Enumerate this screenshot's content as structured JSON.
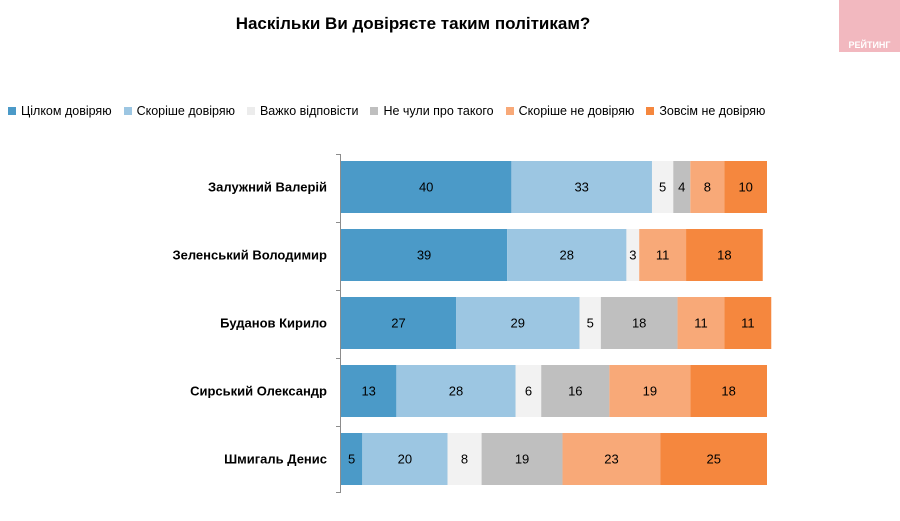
{
  "title": "Наскільки Ви довіряєте таким політикам?",
  "logo_text": "РЕЙТИНГ",
  "chart_data": {
    "type": "bar",
    "orientation": "horizontal",
    "stacked": true,
    "title": "Наскільки Ви довіряєте таким політикам?",
    "legend_position": "top",
    "categories": [
      "Залужний Валерій",
      "Зеленський Володимир",
      "Буданов Кирило",
      "Сирський Олександр",
      "Шмигаль Денис"
    ],
    "series": [
      {
        "name": "Цілком довіряю",
        "color": "#4b9ac8",
        "values": [
          40,
          39,
          27,
          13,
          5
        ]
      },
      {
        "name": "Скоріше довіряю",
        "color": "#9cc6e2",
        "values": [
          33,
          28,
          29,
          28,
          20
        ]
      },
      {
        "name": "Важко відповісти",
        "color": "#f2f2f2",
        "values": [
          5,
          3,
          5,
          6,
          8
        ]
      },
      {
        "name": "Не чули про такого",
        "color": "#bfbfbf",
        "values": [
          4,
          0,
          18,
          16,
          19
        ]
      },
      {
        "name": "Скоріше не довіряю",
        "color": "#f8a978",
        "values": [
          8,
          11,
          11,
          19,
          23
        ]
      },
      {
        "name": "Зовсім не довіряю",
        "color": "#f5873e",
        "values": [
          10,
          18,
          11,
          18,
          25
        ]
      }
    ],
    "xlim": [
      0,
      100
    ]
  }
}
